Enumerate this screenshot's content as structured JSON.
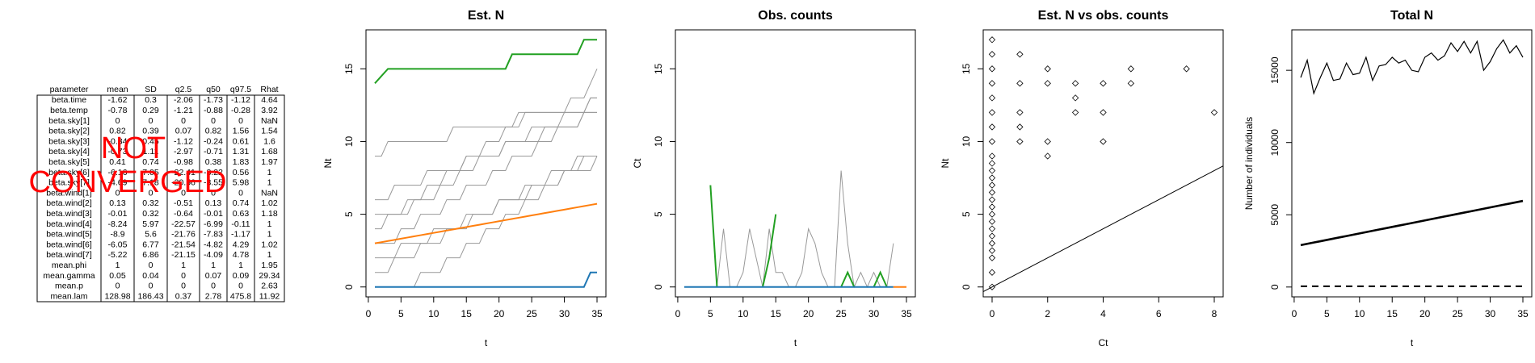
{
  "table": {
    "columns": [
      "parameter",
      "mean",
      "SD",
      "q2.5",
      "q50",
      "q97.5",
      "Rhat"
    ],
    "rows": [
      [
        "beta.time",
        -1.62,
        0.3,
        -2.06,
        -1.73,
        -1.12,
        4.64
      ],
      [
        "beta.temp",
        -0.78,
        0.29,
        -1.21,
        -0.88,
        -0.28,
        3.92
      ],
      [
        "beta.sky[1]",
        0,
        0,
        0,
        0,
        0,
        "NaN"
      ],
      [
        "beta.sky[2]",
        0.82,
        0.39,
        0.07,
        0.82,
        1.56,
        1.54
      ],
      [
        "beta.sky[3]",
        -0.34,
        0.45,
        -1.12,
        -0.24,
        0.61,
        1.6
      ],
      [
        "beta.sky[4]",
        -0.73,
        1.11,
        -2.97,
        -0.71,
        1.31,
        1.68
      ],
      [
        "beta.sky[5]",
        0.41,
        0.74,
        -0.98,
        0.38,
        1.83,
        1.97
      ],
      [
        "beta.sky[6]",
        -6.16,
        7.05,
        -22.41,
        -3.22,
        0.56,
        1
      ],
      [
        "beta.sky[7]",
        -4.69,
        7.18,
        -20.56,
        -3.55,
        5.98,
        1
      ],
      [
        "beta.wind[1]",
        0,
        0,
        0,
        0,
        0,
        "NaN"
      ],
      [
        "beta.wind[2]",
        0.13,
        0.32,
        -0.51,
        0.13,
        0.74,
        1.02
      ],
      [
        "beta.wind[3]",
        -0.01,
        0.32,
        -0.64,
        -0.01,
        0.63,
        1.18
      ],
      [
        "beta.wind[4]",
        -8.24,
        5.97,
        -22.57,
        -6.99,
        -0.11,
        1
      ],
      [
        "beta.wind[5]",
        -8.9,
        5.6,
        -21.76,
        -7.83,
        -1.17,
        1
      ],
      [
        "beta.wind[6]",
        -6.05,
        6.77,
        -21.54,
        -4.82,
        4.29,
        1.02
      ],
      [
        "beta.wind[7]",
        -5.22,
        6.86,
        -21.15,
        -4.09,
        4.78,
        1
      ],
      [
        "mean.phi",
        1,
        0,
        1,
        1,
        1,
        1.95
      ],
      [
        "mean.gamma",
        0.05,
        0.04,
        0,
        0.07,
        0.09,
        29.34
      ],
      [
        "mean.p",
        0,
        0,
        0,
        0,
        0,
        2.63
      ],
      [
        "mean.lam",
        128.98,
        186.43,
        0.37,
        2.78,
        475.8,
        11.92
      ]
    ]
  },
  "stamp": [
    "NOT",
    "CONVERGED"
  ],
  "chart_data": [
    {
      "type": "line",
      "title": "Est. N",
      "x_label": "t",
      "y_label": "Nt",
      "x": [
        1,
        2,
        3,
        4,
        5,
        6,
        7,
        8,
        9,
        10,
        11,
        12,
        13,
        14,
        15,
        16,
        17,
        18,
        19,
        20,
        21,
        22,
        23,
        24,
        25,
        26,
        27,
        28,
        29,
        30,
        31,
        32,
        33,
        34,
        35
      ],
      "xlim": [
        -0.36,
        36.36
      ],
      "xticks": [
        0,
        5,
        10,
        15,
        20,
        25,
        30,
        35
      ],
      "ylim": [
        -0.68,
        17.68
      ],
      "yticks": [
        0,
        5,
        10,
        15
      ],
      "series": [
        {
          "color": "#999999",
          "line_width": 1,
          "values": [
            1,
            1,
            1,
            2,
            2,
            2,
            2,
            3,
            3,
            3,
            3,
            4,
            4,
            4,
            4,
            5,
            5,
            5,
            5,
            6,
            6,
            6,
            6,
            7,
            7,
            7,
            7,
            8,
            8,
            8,
            8,
            9,
            9,
            9,
            9
          ]
        },
        {
          "color": "#999999",
          "line_width": 1,
          "values": [
            2,
            2,
            2,
            2,
            3,
            3,
            3,
            3,
            3,
            4,
            4,
            4,
            4,
            4,
            5,
            5,
            5,
            5,
            5,
            6,
            6,
            6,
            6,
            6,
            7,
            7,
            7,
            7,
            7,
            8,
            8,
            8,
            8,
            8,
            9
          ]
        },
        {
          "color": "#999999",
          "line_width": 1,
          "values": [
            4,
            4,
            5,
            5,
            5,
            6,
            6,
            6,
            7,
            7,
            7,
            8,
            8,
            8,
            9,
            9,
            9,
            10,
            10,
            10,
            11,
            11,
            11,
            12,
            12,
            12,
            12,
            12,
            12,
            12,
            12,
            12,
            12,
            13,
            13
          ]
        },
        {
          "color": "#999999",
          "line_width": 1,
          "values": [
            6,
            6,
            6,
            7,
            7,
            7,
            7,
            7,
            8,
            8,
            8,
            8,
            8,
            8,
            9,
            9,
            9,
            9,
            9,
            9,
            10,
            10,
            10,
            10,
            10,
            10,
            11,
            11,
            11,
            11,
            11,
            11,
            12,
            12,
            12
          ]
        },
        {
          "color": "#999999",
          "line_width": 1,
          "values": [
            9,
            9,
            10,
            10,
            10,
            10,
            10,
            10,
            10,
            10,
            10,
            10,
            11,
            11,
            11,
            11,
            11,
            11,
            11,
            11,
            11,
            11,
            12,
            12,
            12,
            12,
            12,
            12,
            12,
            12,
            13,
            13,
            13,
            14,
            15
          ]
        },
        {
          "color": "#999999",
          "line_width": 1,
          "values": [
            0,
            0,
            0,
            0,
            0,
            0,
            0,
            1,
            1,
            1,
            1,
            2,
            2,
            2,
            3,
            3,
            3,
            4,
            4,
            4,
            5,
            5,
            5,
            6,
            6,
            6,
            7,
            7,
            7,
            8,
            8,
            8,
            9,
            9,
            9
          ]
        },
        {
          "color": "#999999",
          "line_width": 1,
          "values": [
            3,
            3,
            3,
            3,
            4,
            4,
            4,
            5,
            5,
            5,
            5,
            6,
            6,
            6,
            7,
            7,
            7,
            7,
            8,
            8,
            8,
            9,
            9,
            9,
            9,
            10,
            10,
            10,
            11,
            11,
            11,
            11,
            12,
            12,
            12
          ]
        },
        {
          "color": "#999999",
          "line_width": 1,
          "values": [
            5,
            5,
            5,
            5,
            5,
            5,
            6,
            6,
            6,
            6,
            7,
            7,
            7,
            8,
            8,
            8,
            9,
            9,
            9,
            9,
            10,
            10,
            10,
            10,
            11,
            11,
            11,
            11,
            11,
            12,
            12,
            12,
            12,
            13,
            13
          ]
        },
        {
          "color": "#22a022",
          "line_width": 2,
          "values": [
            14,
            14.5,
            15,
            15,
            15,
            15,
            15,
            15,
            15,
            15,
            15,
            15,
            15,
            15,
            15,
            15,
            15,
            15,
            15,
            15,
            15,
            16,
            16,
            16,
            16,
            16,
            16,
            16,
            16,
            16,
            16,
            16,
            17,
            17,
            17
          ]
        },
        {
          "color": "#ff7f0e",
          "line_width": 2,
          "values": [
            3,
            3.08,
            3.16,
            3.24,
            3.32,
            3.4,
            3.48,
            3.56,
            3.64,
            3.72,
            3.8,
            3.88,
            3.96,
            4.04,
            4.12,
            4.2,
            4.28,
            4.36,
            4.44,
            4.52,
            4.6,
            4.68,
            4.76,
            4.84,
            4.92,
            5,
            5.08,
            5.16,
            5.24,
            5.32,
            5.4,
            5.48,
            5.56,
            5.64,
            5.72
          ]
        },
        {
          "color": "#1f77b4",
          "line_width": 2,
          "values": [
            0,
            0,
            0,
            0,
            0,
            0,
            0,
            0,
            0,
            0,
            0,
            0,
            0,
            0,
            0,
            0,
            0,
            0,
            0,
            0,
            0,
            0,
            0,
            0,
            0,
            0,
            0,
            0,
            0,
            0,
            0,
            0,
            0,
            1,
            1
          ]
        }
      ]
    },
    {
      "type": "line",
      "title": "Obs. counts",
      "x_label": "t",
      "y_label": "Ct",
      "x": [
        1,
        2,
        3,
        4,
        5,
        6,
        7,
        8,
        9,
        10,
        11,
        12,
        13,
        14,
        15,
        16,
        17,
        18,
        19,
        20,
        21,
        22,
        23,
        24,
        25,
        26,
        27,
        28,
        29,
        30,
        31,
        32,
        33,
        34,
        35
      ],
      "xlim": [
        -0.36,
        36.36
      ],
      "xticks": [
        0,
        5,
        10,
        15,
        20,
        25,
        30,
        35
      ],
      "ylim": [
        -0.68,
        17.68
      ],
      "yticks": [
        0,
        5,
        10,
        15
      ],
      "series": [
        {
          "color": "#999999",
          "line_width": 1,
          "values": [
            null,
            null,
            null,
            null,
            null,
            0,
            4,
            0,
            0,
            1,
            4,
            2,
            0,
            4,
            1,
            1,
            0,
            0,
            1,
            4,
            3,
            1,
            0,
            0,
            8,
            3,
            0,
            1,
            0,
            1,
            0,
            0,
            3,
            null,
            null
          ]
        },
        {
          "color": "#22a022",
          "line_width": 2,
          "values": [
            null,
            null,
            null,
            null,
            7,
            0,
            null,
            null,
            null,
            null,
            null,
            null,
            0,
            2,
            5,
            null,
            null,
            null,
            null,
            null,
            null,
            null,
            null,
            null,
            0,
            1,
            0,
            null,
            null,
            0,
            1,
            0,
            null,
            null,
            null
          ]
        },
        {
          "color": "#1f77b4",
          "line_width": 2,
          "values": [
            0,
            0,
            0,
            0,
            0,
            0,
            0,
            0,
            0,
            0,
            0,
            0,
            0,
            0,
            0,
            0,
            0,
            0,
            0,
            0,
            0,
            0,
            0,
            0,
            0,
            0,
            0,
            0,
            0,
            0,
            0,
            0,
            0,
            null,
            null
          ]
        },
        {
          "color": "#ff7f0e",
          "line_width": 2,
          "values": [
            null,
            null,
            null,
            null,
            null,
            null,
            null,
            null,
            null,
            null,
            null,
            null,
            null,
            null,
            null,
            null,
            null,
            null,
            null,
            null,
            null,
            null,
            null,
            null,
            null,
            null,
            null,
            null,
            null,
            null,
            null,
            null,
            0,
            0,
            0
          ]
        }
      ]
    },
    {
      "type": "scatter",
      "title": "Est. N vs obs. counts",
      "x_label": "Ct",
      "y_label": "Nt",
      "xlim": [
        -0.32,
        8.32
      ],
      "xticks": [
        0,
        2,
        4,
        6,
        8
      ],
      "ylim": [
        -0.68,
        17.68
      ],
      "yticks": [
        0,
        5,
        10,
        15
      ],
      "abline": {
        "intercept": 0,
        "slope": 1,
        "color": "#000000"
      },
      "series": [
        {
          "color": "#000000",
          "x": [
            0,
            0,
            0,
            0,
            0,
            0,
            0,
            0,
            0,
            0,
            0,
            0,
            0,
            0,
            0,
            0,
            0,
            0,
            0,
            0,
            0,
            0,
            0,
            0,
            0,
            1,
            1,
            1,
            1,
            1,
            2,
            2,
            2,
            2,
            3,
            3,
            3,
            4,
            4,
            4,
            5,
            5,
            7,
            8
          ],
          "values": [
            0,
            1,
            2,
            2.5,
            3,
            3.5,
            4,
            4.5,
            5,
            5.5,
            6,
            6.5,
            7,
            7.5,
            8,
            8.5,
            9,
            10,
            11,
            12,
            13,
            14,
            15,
            16,
            17,
            10,
            11,
            12,
            14,
            16,
            9,
            10,
            14,
            15,
            12,
            13,
            14,
            10,
            12,
            14,
            14,
            15,
            15,
            12
          ]
        }
      ]
    },
    {
      "type": "line",
      "title": "Total N",
      "x_label": "t",
      "y_label": "Number of individuals",
      "x": [
        1,
        2,
        3,
        4,
        5,
        6,
        7,
        8,
        9,
        10,
        11,
        12,
        13,
        14,
        15,
        16,
        17,
        18,
        19,
        20,
        21,
        22,
        23,
        24,
        25,
        26,
        27,
        28,
        29,
        30,
        31,
        32,
        33,
        34,
        35
      ],
      "xlim": [
        -0.36,
        36.36
      ],
      "xticks": [
        0,
        5,
        10,
        15,
        20,
        25,
        30,
        35
      ],
      "ylim": [
        -680,
        17800
      ],
      "yticks": [
        0,
        5000,
        10000,
        15000
      ],
      "series": [
        {
          "color": "#000000",
          "line_width": 1.2,
          "values": [
            14500,
            15700,
            13400,
            14500,
            15500,
            14300,
            14400,
            15500,
            14700,
            14800,
            15900,
            14300,
            15300,
            15400,
            15900,
            15500,
            15700,
            15000,
            14900,
            15900,
            16200,
            15700,
            16000,
            16900,
            16300,
            17000,
            16200,
            17000,
            15000,
            15600,
            16500,
            17100,
            16200,
            16700,
            15900
          ]
        },
        {
          "color": "#000000",
          "line_width": 2.6,
          "values": [
            2900,
            2990,
            3080,
            3170,
            3260,
            3350,
            3440,
            3530,
            3620,
            3710,
            3800,
            3890,
            3980,
            4070,
            4160,
            4250,
            4340,
            4430,
            4520,
            4610,
            4700,
            4790,
            4880,
            4970,
            5060,
            5150,
            5240,
            5330,
            5420,
            5510,
            5600,
            5690,
            5780,
            5870,
            5960
          ]
        },
        {
          "color": "#000000",
          "line_width": 2,
          "dashed": true,
          "values": [
            50,
            50,
            50,
            50,
            50,
            50,
            50,
            50,
            50,
            50,
            50,
            50,
            50,
            50,
            50,
            50,
            50,
            50,
            50,
            50,
            50,
            50,
            50,
            50,
            50,
            50,
            50,
            50,
            50,
            50,
            50,
            50,
            50,
            50,
            50
          ]
        }
      ]
    }
  ]
}
